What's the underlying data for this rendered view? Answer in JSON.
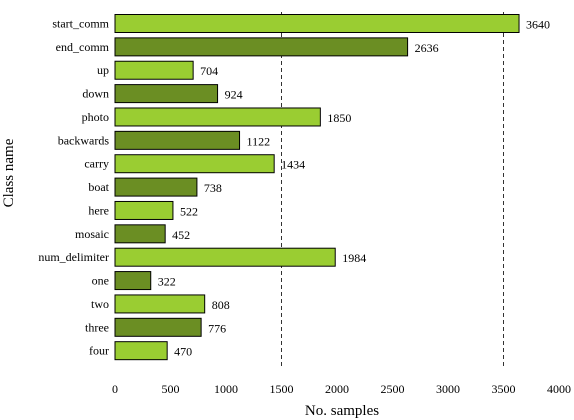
{
  "chart_data": {
    "type": "bar",
    "orientation": "horizontal",
    "xlabel": "No. samples",
    "ylabel": "Class name",
    "xlim": [
      0,
      4000
    ],
    "xticks": [
      0,
      500,
      1000,
      1500,
      2000,
      2500,
      3000,
      3500,
      4000
    ],
    "reference_lines": [
      1500,
      3500
    ],
    "grid": false,
    "categories": [
      "start_comm",
      "end_comm",
      "up",
      "down",
      "photo",
      "backwards",
      "carry",
      "boat",
      "here",
      "mosaic",
      "num_delimiter",
      "one",
      "two",
      "three",
      "four"
    ],
    "values": [
      3640,
      2636,
      704,
      924,
      1850,
      1122,
      1434,
      738,
      522,
      452,
      1984,
      322,
      808,
      776,
      470
    ],
    "value_labels": [
      "3640",
      "2636",
      "704",
      "924",
      "1850",
      "1122",
      "1434",
      "738",
      "522",
      "452",
      "1984",
      "322",
      "808",
      "776",
      "470"
    ],
    "colors": {
      "light": "#9acd32",
      "dark": "#6b8e23"
    }
  }
}
